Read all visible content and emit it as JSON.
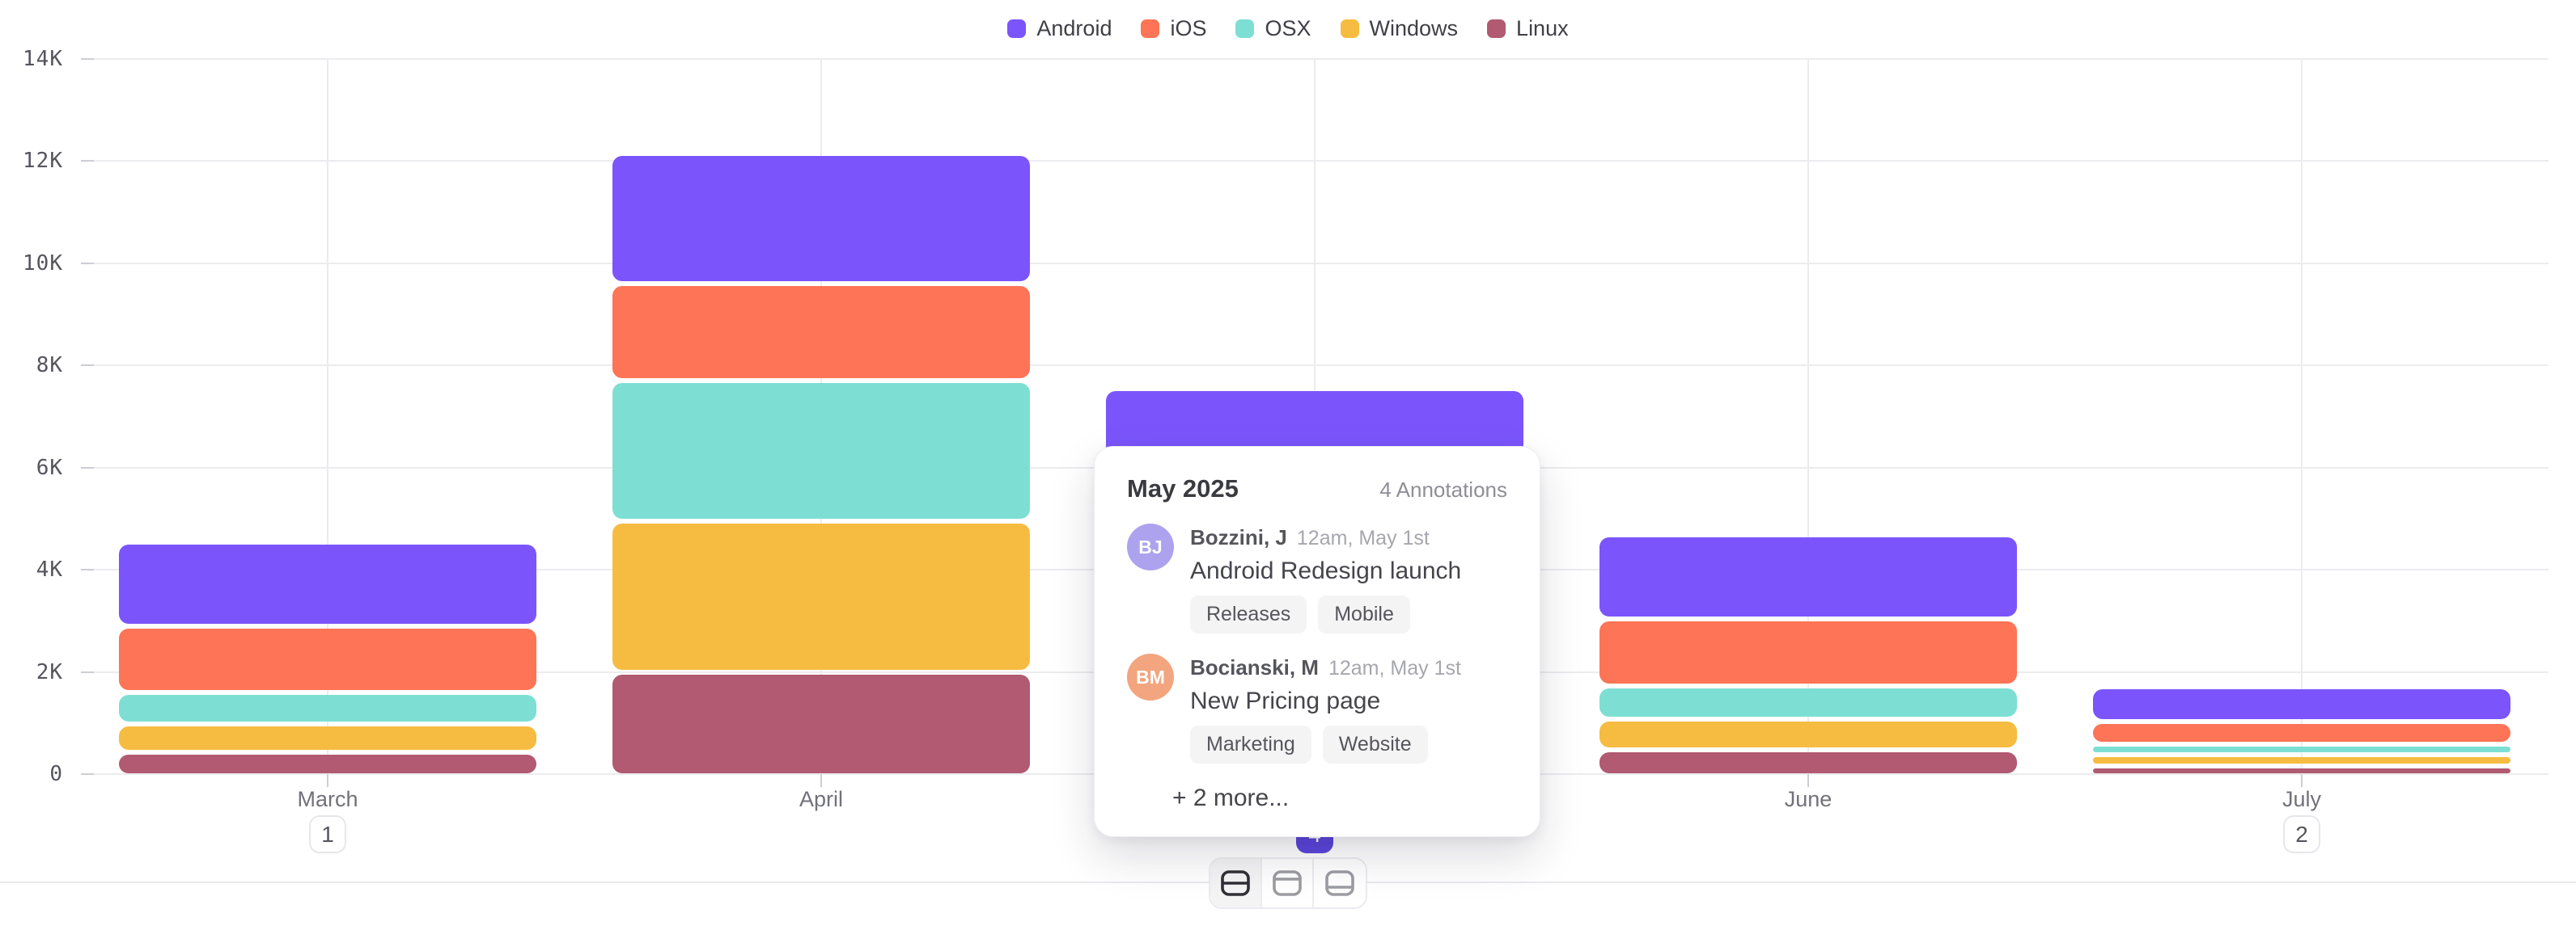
{
  "chart_data": {
    "type": "bar",
    "stacked": true,
    "categories": [
      "March",
      "April",
      "May",
      "June",
      "July"
    ],
    "series": [
      {
        "name": "Android",
        "color": "#7B55FB",
        "values": [
          1600,
          2500,
          2000,
          1600,
          630
        ]
      },
      {
        "name": "iOS",
        "color": "#FD7456",
        "values": [
          1300,
          1900,
          1500,
          1300,
          450
        ]
      },
      {
        "name": "OSX",
        "color": "#7DDFD3",
        "values": [
          620,
          2750,
          1400,
          650,
          200
        ]
      },
      {
        "name": "Windows",
        "color": "#F6BC41",
        "values": [
          560,
          2950,
          1500,
          600,
          220
        ]
      },
      {
        "name": "Linux",
        "color": "#B15A72",
        "values": [
          420,
          2000,
          1100,
          480,
          160
        ]
      }
    ],
    "stack_order_bottom_to_top": [
      "Linux",
      "Windows",
      "OSX",
      "iOS",
      "Android"
    ],
    "y_ticks": [
      "0",
      "2K",
      "4K",
      "6K",
      "8K",
      "10K",
      "12K",
      "14K"
    ],
    "ylim": [
      0,
      14000
    ],
    "grid": true,
    "legend_position": "top",
    "annotation_badges": [
      {
        "category": "March",
        "count": "1",
        "active": false
      },
      {
        "category": "May",
        "count": "4",
        "active": true
      },
      {
        "category": "July",
        "count": "2",
        "active": false
      }
    ]
  },
  "tooltip": {
    "title": "May 2025",
    "count_label": "4 Annotations",
    "annotations": [
      {
        "initials": "BJ",
        "avatar_color": "#ACA2EE",
        "author": "Bozzini, J",
        "time": "12am, May 1st",
        "text": "Android Redesign launch",
        "tags": [
          "Releases",
          "Mobile"
        ]
      },
      {
        "initials": "BM",
        "avatar_color": "#F2A57E",
        "author": "Bocianski, M",
        "time": "12am, May 1st",
        "text": "New Pricing page",
        "tags": [
          "Marketing",
          "Website"
        ]
      }
    ],
    "more_label": "+ 2 more..."
  },
  "toolbar": {
    "buttons": [
      {
        "id": "panel-split-middle",
        "active": true
      },
      {
        "id": "panel-split-top",
        "active": false
      },
      {
        "id": "panel-split-bottom",
        "active": false
      }
    ]
  },
  "colors": {
    "badge_active": "#5B45DC",
    "gridline": "#ececef",
    "axis_tick": "#cdcdd3"
  }
}
